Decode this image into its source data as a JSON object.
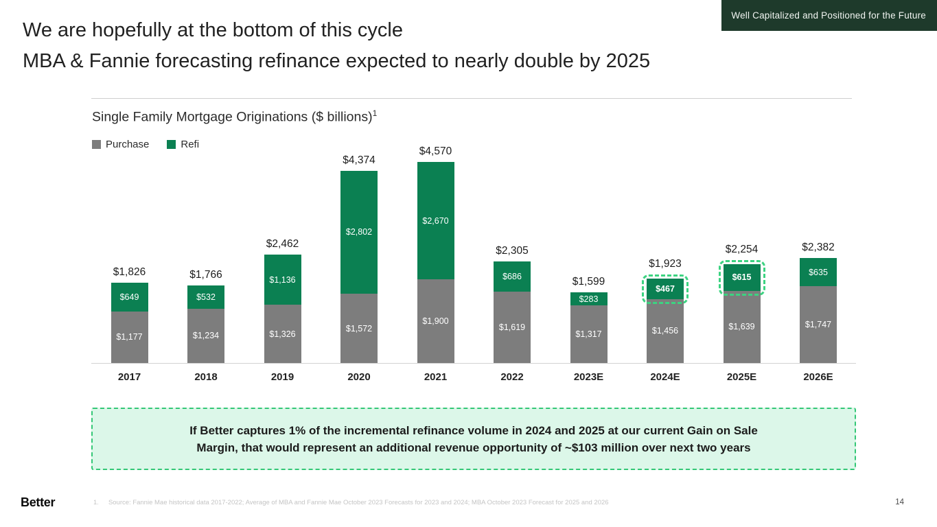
{
  "badge": {
    "label": "Well Capitalized and Positioned for the Future"
  },
  "title": {
    "line1": "We are hopefully at the bottom of this cycle",
    "line2": "MBA & Fannie forecasting refinance expected to nearly double by 2025"
  },
  "chart": {
    "title": "Single Family Mortgage Originations ($ billions)",
    "title_superscript": "1",
    "legend": [
      {
        "label": "Purchase",
        "color": "#7d7d7d"
      },
      {
        "label": "Refi",
        "color": "#0b8052"
      }
    ]
  },
  "chart_data": {
    "type": "bar",
    "stacked": true,
    "title": "Single Family Mortgage Originations ($ billions)",
    "categories": [
      "2017",
      "2018",
      "2019",
      "2020",
      "2021",
      "2022",
      "2023E",
      "2024E",
      "2025E",
      "2026E"
    ],
    "series": [
      {
        "name": "Purchase",
        "color": "#7d7d7d",
        "values": [
          1177,
          1234,
          1326,
          1572,
          1900,
          1619,
          1317,
          1456,
          1639,
          1747
        ],
        "labels": [
          "$1,177",
          "$1,234",
          "$1,326",
          "$1,572",
          "$1,900",
          "$1,619",
          "$1,317",
          "$1,456",
          "$1,639",
          "$1,747"
        ]
      },
      {
        "name": "Refi",
        "color": "#0b8052",
        "values": [
          649,
          532,
          1136,
          2802,
          2670,
          686,
          283,
          467,
          615,
          635
        ],
        "labels": [
          "$649",
          "$532",
          "$1,136",
          "$2,802",
          "$2,670",
          "$686",
          "$283",
          "$467",
          "$615",
          "$635"
        ]
      }
    ],
    "totals": [
      1826,
      1766,
      2462,
      4374,
      4570,
      2305,
      1599,
      1923,
      2254,
      2382
    ],
    "total_labels": [
      "$1,826",
      "$1,766",
      "$2,462",
      "$4,374",
      "$4,570",
      "$2,305",
      "$1,599",
      "$1,923",
      "$2,254",
      "$2,382"
    ],
    "highlighted_categories": [
      "2024E",
      "2025E"
    ],
    "highlight_color": "#3cd381",
    "ylim": [
      0,
      4570
    ],
    "grid": false,
    "legend_position": "top-left"
  },
  "callout": {
    "line1": "If Better captures 1% of the incremental refinance volume in 2024 and 2025 at our current Gain on Sale",
    "line2": "Margin, that would represent an additional revenue opportunity of ~$103 million over next two years"
  },
  "footer": {
    "logo": "Better",
    "footnote_number": "1.",
    "footnote_text": "Source: Fannie Mae historical data 2017-2022; Average of MBA and Fannie Mae October 2023 Forecasts for 2023 and 2024; MBA October 2023 Forecast for 2025 and 2026",
    "page_number": "14"
  }
}
